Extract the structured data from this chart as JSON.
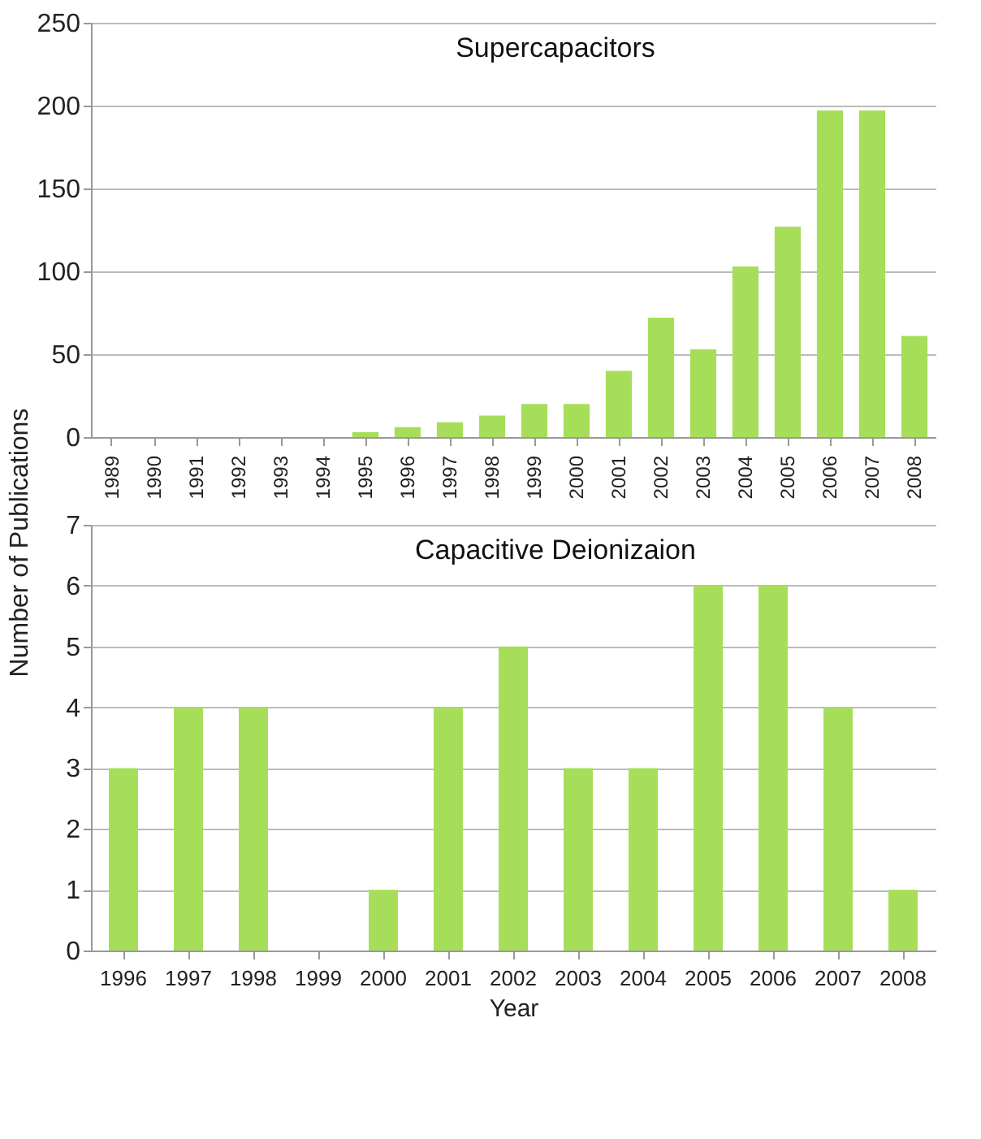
{
  "chart_data": [
    {
      "type": "bar",
      "title": "Supercapacitors",
      "ylabel": "Number of Publications",
      "categories": [
        "1989",
        "1990",
        "1991",
        "1992",
        "1993",
        "1994",
        "1995",
        "1996",
        "1997",
        "1998",
        "1999",
        "2000",
        "2001",
        "2002",
        "2003",
        "2004",
        "2005",
        "2006",
        "2007",
        "2008"
      ],
      "values": [
        0,
        0,
        0,
        0,
        0,
        0,
        3,
        6,
        9,
        13,
        20,
        20,
        40,
        72,
        53,
        103,
        127,
        197,
        197,
        61
      ],
      "color": "#a6de5a",
      "ylim": [
        0,
        250
      ],
      "yticks": [
        0,
        50,
        100,
        150,
        200,
        250
      ],
      "grid": "y",
      "legend": false
    },
    {
      "type": "bar",
      "title": "Capacitive Deionizaion",
      "xlabel": "Year",
      "categories": [
        "1996",
        "1997",
        "1998",
        "1999",
        "2000",
        "2001",
        "2002",
        "2003",
        "2004",
        "2005",
        "2006",
        "2007",
        "2008"
      ],
      "values": [
        3,
        4,
        4,
        0,
        1,
        4,
        5,
        3,
        3,
        6,
        6,
        4,
        1
      ],
      "color": "#a6de5a",
      "ylim": [
        0,
        7
      ],
      "yticks": [
        0,
        1,
        2,
        3,
        4,
        5,
        6,
        7
      ],
      "grid": "y",
      "legend": false
    }
  ]
}
